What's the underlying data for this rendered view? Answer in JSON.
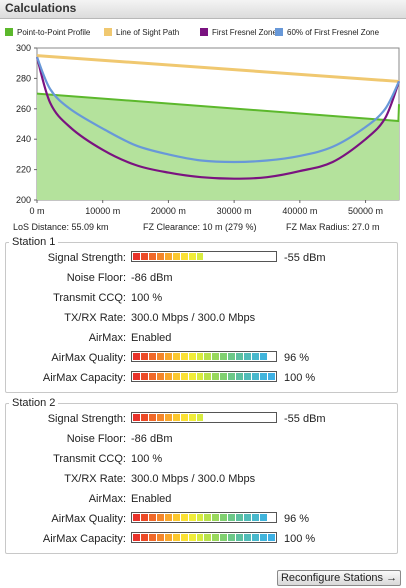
{
  "header": {
    "title": "Calculations"
  },
  "legend": [
    {
      "label": "Point-to-Point Profile",
      "color": "#5cb82c"
    },
    {
      "label": "Line of Sight Path",
      "color": "#f0c870"
    },
    {
      "label": "First Fresnel Zone",
      "color": "#7a1280"
    },
    {
      "label": "60% of First Fresnel Zone",
      "color": "#6898d8"
    }
  ],
  "chart_data": {
    "type": "line",
    "xlim": [
      0,
      55090
    ],
    "ylim": [
      200,
      300
    ],
    "x_ticks": [
      "0 m",
      "10000 m",
      "20000 m",
      "30000 m",
      "40000 m",
      "50000 m"
    ],
    "x_tick_values": [
      0,
      10000,
      20000,
      30000,
      40000,
      50000
    ],
    "y_ticks": [
      "200",
      "220",
      "240",
      "260",
      "280",
      "300"
    ],
    "y_tick_values": [
      200,
      220,
      240,
      260,
      280,
      300
    ],
    "grid": false,
    "series": [
      {
        "name": "Point-to-Point Profile",
        "type": "area",
        "color": "#5cb82c",
        "x": [
          0,
          55000,
          55090
        ],
        "y": [
          270,
          252,
          263
        ]
      },
      {
        "name": "Line of Sight Path",
        "color": "#f0c870",
        "x": [
          0,
          55090
        ],
        "y": [
          295,
          278
        ]
      },
      {
        "name": "First Fresnel Zone",
        "color": "#7a1280",
        "x": [
          0,
          2000,
          5000,
          10000,
          15000,
          20000,
          25000,
          30000,
          35000,
          40000,
          45000,
          50000,
          53000,
          55090
        ],
        "y": [
          294,
          264,
          248,
          233,
          223,
          218,
          215,
          214,
          215,
          219,
          225,
          240,
          254,
          278
        ]
      },
      {
        "name": "60% of First Fresnel Zone",
        "color": "#6898d8",
        "x": [
          0,
          2000,
          5000,
          10000,
          15000,
          20000,
          25000,
          30000,
          35000,
          40000,
          45000,
          50000,
          53000,
          55090
        ],
        "y": [
          294,
          273,
          260,
          247,
          236,
          230,
          226,
          225,
          226,
          229,
          235,
          248,
          260,
          278
        ]
      }
    ]
  },
  "info": {
    "los_distance": "LoS Distance: 55.09 km",
    "fz_clearance": "FZ Clearance: 10 m  (279 %)",
    "fz_max_radius": "FZ Max Radius: 27.0 m"
  },
  "stations": [
    {
      "title": "Station 1",
      "signal_strength": {
        "label": "Signal Strength:",
        "value": "-55 dBm",
        "level": 0.52
      },
      "noise_floor": {
        "label": "Noise Floor:",
        "value": "-86 dBm"
      },
      "transmit_ccq": {
        "label": "Transmit CCQ:",
        "value": "100 %"
      },
      "txrx_rate": {
        "label": "TX/RX Rate:",
        "value": "300.0 Mbps / 300.0 Mbps"
      },
      "airmax": {
        "label": "AirMax:",
        "value": "Enabled"
      },
      "airmax_quality": {
        "label": "AirMax Quality:",
        "value": "96 %",
        "level": 0.96
      },
      "airmax_capacity": {
        "label": "AirMax Capacity:",
        "value": "100 %",
        "level": 1.0
      }
    },
    {
      "title": "Station 2",
      "signal_strength": {
        "label": "Signal Strength:",
        "value": "-55 dBm",
        "level": 0.52
      },
      "noise_floor": {
        "label": "Noise Floor:",
        "value": "-86 dBm"
      },
      "transmit_ccq": {
        "label": "Transmit CCQ:",
        "value": "100 %"
      },
      "txrx_rate": {
        "label": "TX/RX Rate:",
        "value": "300.0 Mbps / 300.0 Mbps"
      },
      "airmax": {
        "label": "AirMax:",
        "value": "Enabled"
      },
      "airmax_quality": {
        "label": "AirMax Quality:",
        "value": "96 %",
        "level": 0.96
      },
      "airmax_capacity": {
        "label": "AirMax Capacity:",
        "value": "100 %",
        "level": 1.0
      }
    }
  ],
  "bar_colors": [
    "#e8322a",
    "#ec4a26",
    "#f06828",
    "#f4862a",
    "#f8a82c",
    "#fbc82e",
    "#fbe032",
    "#f0ec38",
    "#d8ec40",
    "#b8e24c",
    "#98d85c",
    "#80d070",
    "#6cc888",
    "#5cc0a0",
    "#50bcb8",
    "#48b8cc",
    "#40b4dc",
    "#3cb0e4"
  ],
  "actions": {
    "reconfigure_label": "Reconfigure Stations",
    "reconfigure_icon": "arrow-right-icon"
  }
}
